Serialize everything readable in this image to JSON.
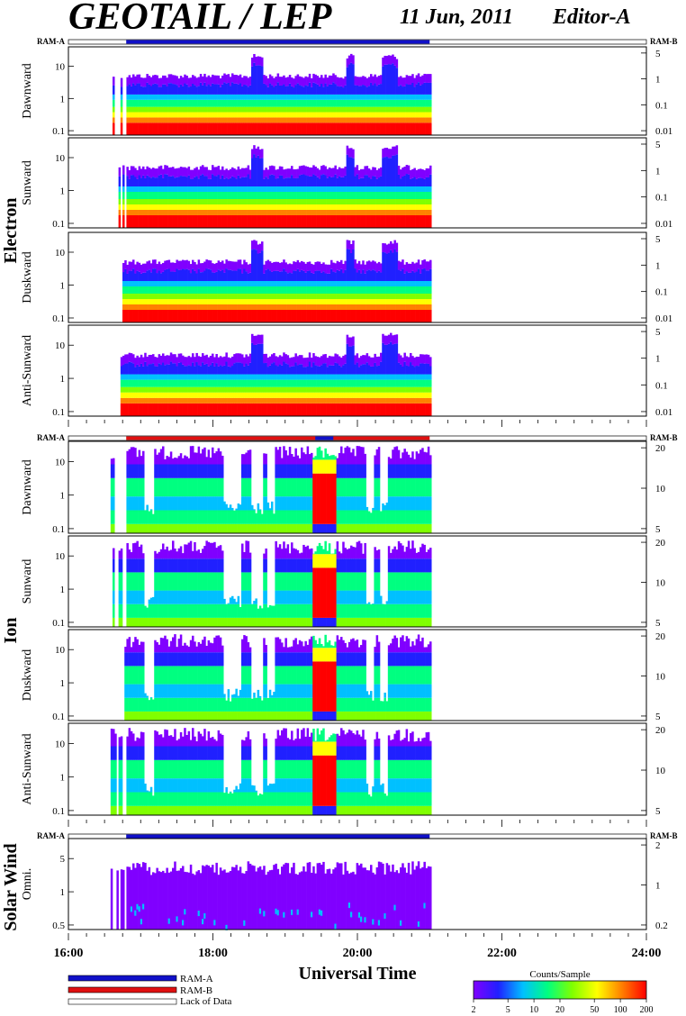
{
  "header": {
    "title": "GEOTAIL / LEP",
    "date": "11 Jun, 2011",
    "editor": "Editor-A"
  },
  "ram_labels": {
    "left": "RAM-A",
    "right": "RAM-B"
  },
  "groups": [
    {
      "label": "Electron",
      "panels": [
        {
          "label": "Dawnward",
          "left_ticks": [
            "10",
            "1",
            "0.1"
          ],
          "right_ticks": [
            "5",
            "1",
            "0.1",
            "0.01"
          ]
        },
        {
          "label": "Sunward",
          "left_ticks": [
            "10",
            "1",
            "0.1"
          ],
          "right_ticks": [
            "5",
            "1",
            "0.1",
            "0.01"
          ]
        },
        {
          "label": "Duskward",
          "left_ticks": [
            "10",
            "1",
            "0.1"
          ],
          "right_ticks": [
            "5",
            "1",
            "0.1",
            "0.01"
          ]
        },
        {
          "label": "Anti-Sunward",
          "left_ticks": [
            "10",
            "1",
            "0.1"
          ],
          "right_ticks": [
            "5",
            "1",
            "0.1",
            "0.01"
          ]
        }
      ]
    },
    {
      "label": "Ion",
      "panels": [
        {
          "label": "Dawnward",
          "left_ticks": [
            "10",
            "1",
            "0.1"
          ],
          "right_ticks": [
            "20",
            "10",
            "5"
          ]
        },
        {
          "label": "Sunward",
          "left_ticks": [
            "10",
            "1",
            "0.1"
          ],
          "right_ticks": [
            "20",
            "10",
            "5"
          ]
        },
        {
          "label": "Duskward",
          "left_ticks": [
            "10",
            "1",
            "0.1"
          ],
          "right_ticks": [
            "20",
            "10",
            "5"
          ]
        },
        {
          "label": "Anti-Sunward",
          "left_ticks": [
            "10",
            "1",
            "0.1"
          ],
          "right_ticks": [
            "20",
            "10",
            "5"
          ]
        }
      ]
    },
    {
      "label": "Solar Wind",
      "panels": [
        {
          "label": "Omni.",
          "left_ticks": [
            "5",
            "1",
            "0.5"
          ],
          "right_ticks": [
            "2",
            "1",
            "0.2"
          ]
        }
      ]
    }
  ],
  "chart_data": {
    "type": "heatmap",
    "x_axis": {
      "label": "Universal Time",
      "ticks": [
        "16:00",
        "18:00",
        "20:00",
        "22:00",
        "24:00"
      ],
      "range": [
        "16:00",
        "24:00"
      ],
      "data_coverage": [
        "16:35",
        "21:00"
      ]
    },
    "ram_bar_states": {
      "electron": {
        "RAM-A": [
          "16:48",
          "21:00"
        ]
      },
      "ion": {
        "RAM-B": [
          "16:48",
          "21:00"
        ],
        "RAM-A": [
          "19:25",
          "19:40"
        ]
      },
      "solar_wind": {
        "RAM-A": [
          "16:48",
          "21:00"
        ]
      }
    },
    "colorbar": {
      "title": "Counts/Sample",
      "scale": "log",
      "range": [
        2,
        200
      ],
      "ticks": [
        "2",
        "5",
        "10",
        "20",
        "50",
        "100",
        "200"
      ],
      "colors": [
        "#8000ff",
        "#2020ff",
        "#00c0ff",
        "#00ff80",
        "#80ff00",
        "#ffff00",
        "#ff8000",
        "#ff0000"
      ]
    }
  },
  "legend": {
    "items": [
      {
        "label": "RAM-A",
        "color": "#1010c8"
      },
      {
        "label": "RAM-B",
        "color": "#e01010"
      },
      {
        "label": "Lack of Data",
        "color": "#ffffff"
      }
    ]
  }
}
